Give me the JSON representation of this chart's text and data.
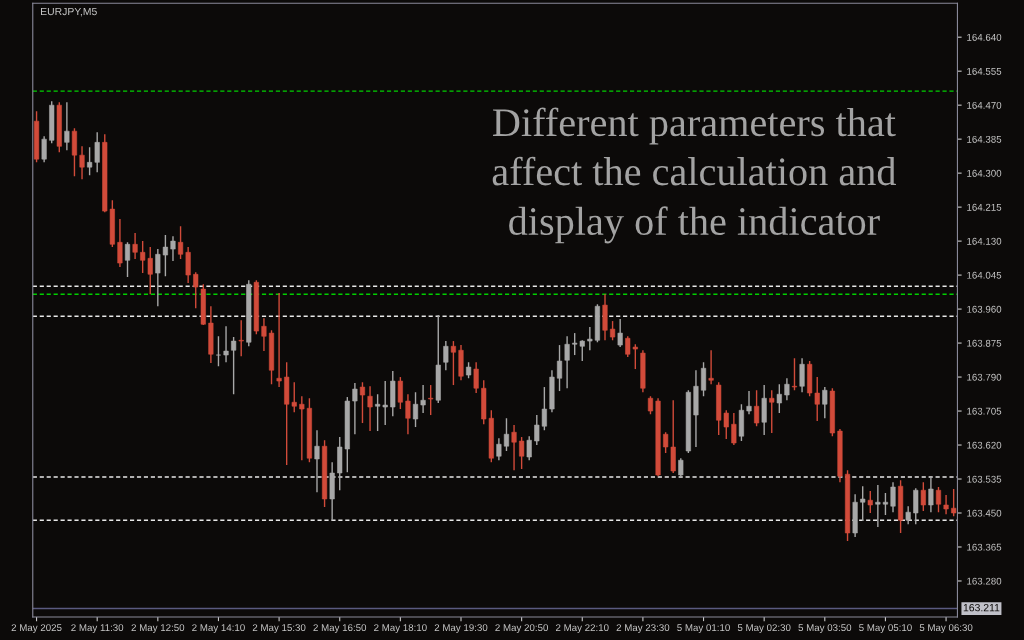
{
  "chart_data": {
    "type": "candlestick",
    "title": "EURJPY,M5",
    "annotations": [
      "Different parameters that\naffect the calculation and\ndisplay of the indicator"
    ],
    "categories": [
      "2 May 2025",
      null,
      null,
      null,
      null,
      null,
      null,
      null,
      "2 May 11:30",
      null,
      null,
      null,
      null,
      null,
      null,
      null,
      "2 May 12:50",
      null,
      null,
      null,
      null,
      null,
      null,
      null,
      "2 May 14:10",
      null,
      null,
      null,
      null,
      null,
      null,
      null,
      "2 May 15:30",
      null,
      null,
      null,
      null,
      null,
      null,
      null,
      "2 May 16:50",
      null,
      null,
      null,
      null,
      null,
      null,
      null,
      "2 May 18:10",
      null,
      null,
      null,
      null,
      null,
      null,
      null,
      "2 May 19:30",
      null,
      null,
      null,
      null,
      null,
      null,
      null,
      "2 May 20:50",
      null,
      null,
      null,
      null,
      null,
      null,
      null,
      "2 May 22:10",
      null,
      null,
      null,
      null,
      null,
      null,
      null,
      "2 May 23:30",
      null,
      null,
      null,
      null,
      null,
      null,
      null,
      "5 May 01:10",
      null,
      null,
      null,
      null,
      null,
      null,
      null,
      "5 May 02:30",
      null,
      null,
      null,
      null,
      null,
      null,
      null,
      "5 May 03:50",
      null,
      null,
      null,
      null,
      null,
      null,
      null,
      "5 May 05:10",
      null,
      null,
      null,
      null,
      null,
      null,
      null,
      "5 May 06:30",
      null
    ],
    "ohlc": [
      [
        164.43,
        164.455,
        164.327,
        164.335
      ],
      [
        164.335,
        164.392,
        164.327,
        164.385
      ],
      [
        164.382,
        164.48,
        164.375,
        164.47
      ],
      [
        164.47,
        164.477,
        164.352,
        164.367
      ],
      [
        164.377,
        164.477,
        164.357,
        164.405
      ],
      [
        164.405,
        164.412,
        164.292,
        164.345
      ],
      [
        164.345,
        164.367,
        164.285,
        164.315
      ],
      [
        164.315,
        164.365,
        164.295,
        164.327
      ],
      [
        164.327,
        164.402,
        164.302,
        164.377
      ],
      [
        164.377,
        164.397,
        164.202,
        164.205
      ],
      [
        164.21,
        164.232,
        164.115,
        164.122
      ],
      [
        164.127,
        164.185,
        164.065,
        164.075
      ],
      [
        164.082,
        164.127,
        164.04,
        164.122
      ],
      [
        164.122,
        164.15,
        164.085,
        164.102
      ],
      [
        164.102,
        164.13,
        164.05,
        164.082
      ],
      [
        164.087,
        164.115,
        163.997,
        164.047
      ],
      [
        164.05,
        164.11,
        163.967,
        164.097
      ],
      [
        164.095,
        164.145,
        164.042,
        164.115
      ],
      [
        164.11,
        164.142,
        164.08,
        164.13
      ],
      [
        164.127,
        164.167,
        164.085,
        164.097
      ],
      [
        164.102,
        164.115,
        164.025,
        164.045
      ],
      [
        164.047,
        164.052,
        163.962,
        164.015
      ],
      [
        164.01,
        164.022,
        163.92,
        163.922
      ],
      [
        163.925,
        163.967,
        163.825,
        163.847
      ],
      [
        163.845,
        163.892,
        163.817,
        163.845
      ],
      [
        163.845,
        163.917,
        163.827,
        163.855
      ],
      [
        163.857,
        163.89,
        163.747,
        163.88
      ],
      [
        163.882,
        163.932,
        163.842,
        163.88
      ],
      [
        163.877,
        164.032,
        163.867,
        164.022
      ],
      [
        164.027,
        164.032,
        163.897,
        163.905
      ],
      [
        163.917,
        163.937,
        163.855,
        163.892
      ],
      [
        163.9,
        163.907,
        163.772,
        163.807
      ],
      [
        163.787,
        164.0,
        163.765,
        163.78
      ],
      [
        163.79,
        163.827,
        163.57,
        163.722
      ],
      [
        163.727,
        163.777,
        163.702,
        163.717
      ],
      [
        163.722,
        163.742,
        163.582,
        163.71
      ],
      [
        163.712,
        163.737,
        163.577,
        163.587
      ],
      [
        163.585,
        163.657,
        163.502,
        163.617
      ],
      [
        163.617,
        163.632,
        163.465,
        163.485
      ],
      [
        163.485,
        163.577,
        163.432,
        163.55
      ],
      [
        163.55,
        163.64,
        163.507,
        163.615
      ],
      [
        163.61,
        163.74,
        163.552,
        163.73
      ],
      [
        163.73,
        163.775,
        163.647,
        163.76
      ],
      [
        163.765,
        163.777,
        163.675,
        163.745
      ],
      [
        163.742,
        163.767,
        163.655,
        163.715
      ],
      [
        163.717,
        163.747,
        163.655,
        163.722
      ],
      [
        163.715,
        163.78,
        163.67,
        163.72
      ],
      [
        163.715,
        163.805,
        163.692,
        163.78
      ],
      [
        163.78,
        163.79,
        163.71,
        163.727
      ],
      [
        163.73,
        163.747,
        163.647,
        163.687
      ],
      [
        163.685,
        163.752,
        163.665,
        163.722
      ],
      [
        163.72,
        163.77,
        163.7,
        163.732
      ],
      [
        163.737,
        163.77,
        163.695,
        163.735
      ],
      [
        163.732,
        163.945,
        163.725,
        163.82
      ],
      [
        163.827,
        163.88,
        163.807,
        163.867
      ],
      [
        163.867,
        163.88,
        163.77,
        163.852
      ],
      [
        163.857,
        163.87,
        163.782,
        163.792
      ],
      [
        163.795,
        163.827,
        163.787,
        163.815
      ],
      [
        163.81,
        163.827,
        163.75,
        163.762
      ],
      [
        163.762,
        163.782,
        163.672,
        163.685
      ],
      [
        163.687,
        163.707,
        163.577,
        163.587
      ],
      [
        163.592,
        163.637,
        163.582,
        163.622
      ],
      [
        163.617,
        163.687,
        163.605,
        163.647
      ],
      [
        163.652,
        163.67,
        163.557,
        163.627
      ],
      [
        163.63,
        163.64,
        163.56,
        163.592
      ],
      [
        163.59,
        163.642,
        163.582,
        163.632
      ],
      [
        163.63,
        163.695,
        163.62,
        163.67
      ],
      [
        163.667,
        163.765,
        163.657,
        163.71
      ],
      [
        163.71,
        163.807,
        163.702,
        163.79
      ],
      [
        163.787,
        163.87,
        163.755,
        163.83
      ],
      [
        163.832,
        163.892,
        163.762,
        163.872
      ],
      [
        163.872,
        163.9,
        163.845,
        163.875
      ],
      [
        163.867,
        163.882,
        163.83,
        163.88
      ],
      [
        163.88,
        163.915,
        163.857,
        163.885
      ],
      [
        163.882,
        163.972,
        163.877,
        163.967
      ],
      [
        163.97,
        163.997,
        163.882,
        163.907
      ],
      [
        163.91,
        163.93,
        163.882,
        163.89
      ],
      [
        163.87,
        163.935,
        163.865,
        163.9
      ],
      [
        163.887,
        163.892,
        163.84,
        163.847
      ],
      [
        163.865,
        163.872,
        163.81,
        163.86
      ],
      [
        163.85,
        163.857,
        163.752,
        163.762
      ],
      [
        163.737,
        163.742,
        163.697,
        163.705
      ],
      [
        163.73,
        163.737,
        163.542,
        163.545
      ],
      [
        163.647,
        163.652,
        163.6,
        163.615
      ],
      [
        163.615,
        163.732,
        163.55,
        163.555
      ],
      [
        163.545,
        163.587,
        163.54,
        163.582
      ],
      [
        163.605,
        163.757,
        163.6,
        163.752
      ],
      [
        163.695,
        163.807,
        163.615,
        163.767
      ],
      [
        163.757,
        163.827,
        163.742,
        163.812
      ],
      [
        163.787,
        163.857,
        163.772,
        163.782
      ],
      [
        163.77,
        163.777,
        163.645,
        163.682
      ],
      [
        163.7,
        163.707,
        163.635,
        163.665
      ],
      [
        163.672,
        163.7,
        163.62,
        163.625
      ],
      [
        163.642,
        163.722,
        163.63,
        163.707
      ],
      [
        163.705,
        163.755,
        163.697,
        163.717
      ],
      [
        163.717,
        163.757,
        163.667,
        163.675
      ],
      [
        163.677,
        163.77,
        163.645,
        163.737
      ],
      [
        163.737,
        163.757,
        163.65,
        163.727
      ],
      [
        163.725,
        163.772,
        163.7,
        163.747
      ],
      [
        163.745,
        163.787,
        163.732,
        163.772
      ],
      [
        163.767,
        163.837,
        163.757,
        163.765
      ],
      [
        163.767,
        163.837,
        163.752,
        163.822
      ],
      [
        163.822,
        163.83,
        163.742,
        163.75
      ],
      [
        163.75,
        163.79,
        163.68,
        163.722
      ],
      [
        163.722,
        163.765,
        163.687,
        163.757
      ],
      [
        163.755,
        163.762,
        163.642,
        163.65
      ],
      [
        163.655,
        163.66,
        163.527,
        163.542
      ],
      [
        163.547,
        163.557,
        163.38,
        163.4
      ],
      [
        163.4,
        163.497,
        163.39,
        163.477
      ],
      [
        163.477,
        163.517,
        163.43,
        163.485
      ],
      [
        163.482,
        163.505,
        163.45,
        163.47
      ],
      [
        163.472,
        163.52,
        163.415,
        163.477
      ],
      [
        163.472,
        163.5,
        163.445,
        163.477
      ],
      [
        163.467,
        163.527,
        163.452,
        163.515
      ],
      [
        163.517,
        163.532,
        163.4,
        163.432
      ],
      [
        163.432,
        163.467,
        163.422,
        163.452
      ],
      [
        163.45,
        163.512,
        163.422,
        163.507
      ],
      [
        163.507,
        163.527,
        163.455,
        163.47
      ],
      [
        163.47,
        163.54,
        163.452,
        163.51
      ],
      [
        163.507,
        163.515,
        163.452,
        163.472
      ],
      [
        163.47,
        163.495,
        163.447,
        163.46
      ],
      [
        163.462,
        163.51,
        163.442,
        163.45
      ]
    ],
    "colors": [
      "#d24b3a",
      "#a8a8a8",
      "#a8a8a8",
      "#d24b3a",
      "#a8a8a8",
      "#d24b3a",
      "#d24b3a",
      "#a8a8a8",
      "#a8a8a8",
      "#d24b3a",
      "#d24b3a",
      "#d24b3a",
      "#a8a8a8",
      "#d24b3a",
      "#d24b3a",
      "#d24b3a",
      "#a8a8a8",
      "#a8a8a8",
      "#a8a8a8",
      "#d24b3a",
      "#d24b3a",
      "#d24b3a",
      "#d24b3a",
      "#d24b3a",
      "#a8a8a8",
      "#a8a8a8",
      "#a8a8a8",
      "#d24b3a",
      "#a8a8a8",
      "#d24b3a",
      "#d24b3a",
      "#d24b3a",
      "#d24b3a",
      "#d24b3a",
      "#d24b3a",
      "#d24b3a",
      "#d24b3a",
      "#a8a8a8",
      "#d24b3a",
      "#a8a8a8",
      "#a8a8a8",
      "#a8a8a8",
      "#a8a8a8",
      "#d24b3a",
      "#d24b3a",
      "#a8a8a8",
      "#a8a8a8",
      "#a8a8a8",
      "#d24b3a",
      "#d24b3a",
      "#a8a8a8",
      "#a8a8a8",
      "#d24b3a",
      "#a8a8a8",
      "#a8a8a8",
      "#d24b3a",
      "#d24b3a",
      "#a8a8a8",
      "#d24b3a",
      "#d24b3a",
      "#d24b3a",
      "#a8a8a8",
      "#a8a8a8",
      "#d24b3a",
      "#d24b3a",
      "#a8a8a8",
      "#a8a8a8",
      "#a8a8a8",
      "#a8a8a8",
      "#a8a8a8",
      "#a8a8a8",
      "#a8a8a8",
      "#a8a8a8",
      "#a8a8a8",
      "#a8a8a8",
      "#d24b3a",
      "#d24b3a",
      "#a8a8a8",
      "#d24b3a",
      "#d24b3a",
      "#d24b3a",
      "#d24b3a",
      "#d24b3a",
      "#d24b3a",
      "#d24b3a",
      "#a8a8a8",
      "#a8a8a8",
      "#a8a8a8",
      "#a8a8a8",
      "#d24b3a",
      "#d24b3a",
      "#d24b3a",
      "#d24b3a",
      "#a8a8a8",
      "#a8a8a8",
      "#d24b3a",
      "#a8a8a8",
      "#d24b3a",
      "#a8a8a8",
      "#a8a8a8",
      "#d24b3a",
      "#a8a8a8",
      "#d24b3a",
      "#d24b3a",
      "#a8a8a8",
      "#d24b3a",
      "#d24b3a",
      "#d24b3a",
      "#a8a8a8",
      "#a8a8a8",
      "#d24b3a",
      "#a8a8a8",
      "#a8a8a8",
      "#a8a8a8",
      "#d24b3a",
      "#a8a8a8",
      "#a8a8a8",
      "#d24b3a",
      "#a8a8a8",
      "#d24b3a",
      "#d24b3a",
      "#d24b3a"
    ],
    "ylim": [
      163.19,
      164.725
    ],
    "yticks": [
      {
        "value": 163.28,
        "label": "163.280"
      },
      {
        "value": 163.365,
        "label": "163.365"
      },
      {
        "value": 163.45,
        "label": "163.450"
      },
      {
        "value": 163.535,
        "label": "163.535"
      },
      {
        "value": 163.62,
        "label": "163.620"
      },
      {
        "value": 163.705,
        "label": "163.705"
      },
      {
        "value": 163.79,
        "label": "163.790"
      },
      {
        "value": 163.875,
        "label": "163.875"
      },
      {
        "value": 163.96,
        "label": "163.960"
      },
      {
        "value": 164.045,
        "label": "164.045"
      },
      {
        "value": 164.13,
        "label": "164.130"
      },
      {
        "value": 164.215,
        "label": "164.215"
      },
      {
        "value": 164.3,
        "label": "164.300"
      },
      {
        "value": 164.385,
        "label": "164.385"
      },
      {
        "value": 164.47,
        "label": "164.470"
      },
      {
        "value": 164.555,
        "label": "164.555"
      },
      {
        "value": 164.64,
        "label": "164.640"
      }
    ],
    "ref_lines": [
      {
        "axis": "y",
        "value": 164.505,
        "color": "#00d000",
        "line_style": "dashed"
      },
      {
        "axis": "y",
        "value": 163.997,
        "color": "#00d000",
        "line_style": "dashed"
      },
      {
        "axis": "y",
        "value": 164.017,
        "color": "#e8e8e8",
        "line_style": "dashed"
      },
      {
        "axis": "y",
        "value": 163.942,
        "color": "#e8e8e8",
        "line_style": "dashed"
      },
      {
        "axis": "y",
        "value": 163.432,
        "color": "#e8e8e8",
        "line_style": "dashed"
      },
      {
        "axis": "y",
        "value": 163.54,
        "color": "#e8e8e8",
        "line_style": "dashed"
      },
      {
        "axis": "y",
        "value": 163.211,
        "label": "163.211",
        "color": "#5a5a80",
        "line_style": "solid"
      }
    ],
    "grid": false
  }
}
